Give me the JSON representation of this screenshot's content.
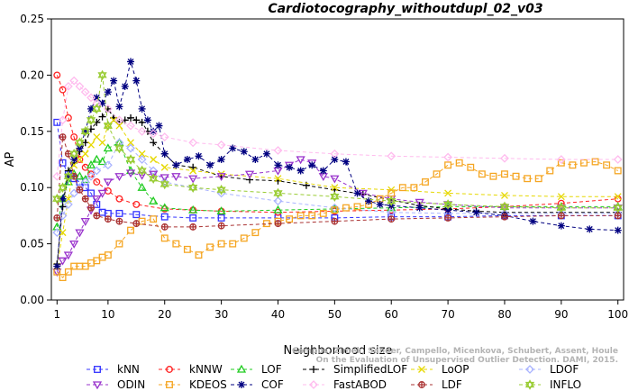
{
  "chart_data": {
    "type": "line",
    "title": "Cardiotocography_withoutdupl_02_v03",
    "xlabel": "Neighborhood size",
    "ylabel": "AP",
    "xlim": [
      0,
      101
    ],
    "ylim": [
      0,
      0.25
    ],
    "x_ticks": [
      1,
      10,
      20,
      30,
      40,
      50,
      60,
      70,
      80,
      90,
      100
    ],
    "x_tick_labels": [
      "1",
      "10",
      "20",
      "30",
      "40",
      "50",
      "60",
      "70",
      "80",
      "90",
      "100"
    ],
    "y_ticks": [
      0,
      0.05,
      0.1,
      0.15,
      0.2,
      0.25
    ],
    "y_tick_labels": [
      "0.00",
      "0.05",
      "0.10",
      "0.15",
      "0.20",
      "0.25"
    ],
    "grid": false,
    "legend_position": "bottom",
    "watermark": "Campos, Zimek, Sander, Campello, Micenkova, Schubert, Assent, Houle\nOn the Evaluation of Unsupervised Outlier Detection. DAMI, 2015.",
    "series": [
      {
        "name": "kNN",
        "color": "#3333ff",
        "marker": "square",
        "x": [
          1,
          2,
          3,
          4,
          5,
          6,
          7,
          8,
          9,
          10,
          12,
          15,
          20,
          25,
          30,
          40,
          50,
          60,
          70,
          80,
          90,
          100
        ],
        "y": [
          0.158,
          0.122,
          0.112,
          0.108,
          0.105,
          0.1,
          0.095,
          0.085,
          0.078,
          0.077,
          0.077,
          0.076,
          0.074,
          0.073,
          0.073,
          0.073,
          0.073,
          0.074,
          0.074,
          0.075,
          0.075,
          0.075
        ]
      },
      {
        "name": "kNNW",
        "color": "#ff2222",
        "marker": "circle",
        "x": [
          1,
          2,
          3,
          4,
          5,
          6,
          7,
          8,
          10,
          12,
          15,
          20,
          25,
          30,
          40,
          50,
          60,
          70,
          80,
          90,
          100
        ],
        "y": [
          0.2,
          0.187,
          0.162,
          0.145,
          0.125,
          0.118,
          0.112,
          0.105,
          0.097,
          0.09,
          0.085,
          0.081,
          0.08,
          0.079,
          0.078,
          0.079,
          0.08,
          0.081,
          0.083,
          0.086,
          0.09
        ]
      },
      {
        "name": "LOF",
        "color": "#22cc22",
        "marker": "triangle",
        "x": [
          1,
          2,
          3,
          4,
          5,
          6,
          7,
          8,
          9,
          10,
          12,
          14,
          16,
          18,
          20,
          25,
          30,
          40,
          50,
          60,
          70,
          80,
          90,
          100
        ],
        "y": [
          0.065,
          0.09,
          0.105,
          0.112,
          0.11,
          0.107,
          0.12,
          0.125,
          0.123,
          0.135,
          0.14,
          0.115,
          0.1,
          0.088,
          0.082,
          0.08,
          0.079,
          0.08,
          0.081,
          0.082,
          0.083,
          0.083,
          0.083,
          0.083
        ]
      },
      {
        "name": "SimplifiedLOF",
        "color": "#000000",
        "marker": "plus",
        "x": [
          1,
          2,
          3,
          4,
          5,
          6,
          7,
          8,
          9,
          10,
          11,
          12,
          13,
          14,
          15,
          16,
          17,
          18,
          20,
          22,
          25,
          30,
          35,
          40,
          45,
          50,
          55,
          60,
          65,
          70,
          75,
          80,
          90,
          100
        ],
        "y": [
          0.032,
          0.083,
          0.115,
          0.122,
          0.132,
          0.14,
          0.152,
          0.158,
          0.163,
          0.17,
          0.162,
          0.158,
          0.16,
          0.162,
          0.16,
          0.158,
          0.15,
          0.14,
          0.13,
          0.12,
          0.118,
          0.11,
          0.107,
          0.106,
          0.102,
          0.098,
          0.094,
          0.089,
          0.084,
          0.081,
          0.079,
          0.078,
          0.078,
          0.078
        ]
      },
      {
        "name": "LoOP",
        "color": "#e6d800",
        "marker": "x",
        "x": [
          1,
          2,
          3,
          4,
          5,
          6,
          7,
          8,
          9,
          10,
          11,
          12,
          14,
          16,
          18,
          20,
          25,
          30,
          40,
          50,
          60,
          70,
          80,
          90,
          100
        ],
        "y": [
          0.03,
          0.06,
          0.09,
          0.12,
          0.125,
          0.13,
          0.138,
          0.145,
          0.14,
          0.155,
          0.16,
          0.155,
          0.14,
          0.13,
          0.125,
          0.118,
          0.115,
          0.112,
          0.108,
          0.1,
          0.098,
          0.095,
          0.093,
          0.092,
          0.092
        ]
      },
      {
        "name": "LDOF",
        "color": "#aab4ff",
        "marker": "diamond",
        "x": [
          1,
          2,
          3,
          4,
          5,
          6,
          7,
          8,
          10,
          12,
          14,
          16,
          18,
          20,
          25,
          30,
          40,
          50,
          60,
          70,
          80,
          90,
          100
        ],
        "y": [
          0.06,
          0.075,
          0.085,
          0.095,
          0.1,
          0.105,
          0.11,
          0.115,
          0.12,
          0.14,
          0.135,
          0.125,
          0.115,
          0.105,
          0.1,
          0.095,
          0.088,
          0.082,
          0.078,
          0.077,
          0.077,
          0.077,
          0.077
        ]
      },
      {
        "name": "ODIN",
        "color": "#9933cc",
        "marker": "triangle-down",
        "x": [
          1,
          2,
          3,
          4,
          5,
          6,
          7,
          8,
          9,
          10,
          12,
          14,
          16,
          18,
          20,
          22,
          25,
          30,
          35,
          40,
          42,
          44,
          46,
          48,
          50,
          55,
          60,
          65,
          70,
          80,
          90,
          100
        ],
        "y": [
          0.025,
          0.035,
          0.04,
          0.05,
          0.06,
          0.07,
          0.08,
          0.09,
          0.095,
          0.105,
          0.11,
          0.113,
          0.111,
          0.112,
          0.109,
          0.11,
          0.108,
          0.11,
          0.112,
          0.115,
          0.12,
          0.125,
          0.122,
          0.11,
          0.108,
          0.095,
          0.09,
          0.087,
          0.085,
          0.082,
          0.082,
          0.082
        ]
      },
      {
        "name": "KDEOS",
        "color": "#f5a623",
        "marker": "square",
        "x": [
          1,
          2,
          3,
          4,
          5,
          6,
          7,
          8,
          9,
          10,
          12,
          14,
          16,
          18,
          20,
          22,
          24,
          26,
          28,
          30,
          32,
          34,
          36,
          38,
          40,
          42,
          44,
          46,
          48,
          50,
          52,
          54,
          56,
          58,
          60,
          62,
          64,
          66,
          68,
          70,
          72,
          74,
          76,
          78,
          80,
          82,
          84,
          86,
          88,
          90,
          92,
          94,
          96,
          98,
          100
        ],
        "y": [
          0.025,
          0.02,
          0.025,
          0.03,
          0.03,
          0.03,
          0.033,
          0.035,
          0.038,
          0.04,
          0.05,
          0.062,
          0.07,
          0.072,
          0.055,
          0.05,
          0.045,
          0.04,
          0.047,
          0.05,
          0.05,
          0.055,
          0.06,
          0.068,
          0.07,
          0.072,
          0.075,
          0.075,
          0.077,
          0.08,
          0.082,
          0.083,
          0.085,
          0.09,
          0.095,
          0.1,
          0.1,
          0.105,
          0.112,
          0.12,
          0.122,
          0.118,
          0.112,
          0.11,
          0.112,
          0.11,
          0.108,
          0.108,
          0.115,
          0.122,
          0.12,
          0.122,
          0.123,
          0.12,
          0.115
        ]
      },
      {
        "name": "COF",
        "color": "#000080",
        "marker": "asterisk",
        "x": [
          1,
          2,
          3,
          4,
          5,
          6,
          7,
          8,
          9,
          10,
          11,
          12,
          13,
          14,
          15,
          16,
          17,
          18,
          19,
          20,
          22,
          24,
          26,
          28,
          30,
          32,
          34,
          36,
          38,
          40,
          42,
          44,
          46,
          48,
          50,
          52,
          54,
          56,
          58,
          60,
          65,
          70,
          75,
          80,
          85,
          90,
          95,
          100
        ],
        "y": [
          0.03,
          0.09,
          0.11,
          0.125,
          0.135,
          0.15,
          0.17,
          0.18,
          0.175,
          0.185,
          0.195,
          0.172,
          0.19,
          0.212,
          0.195,
          0.17,
          0.16,
          0.15,
          0.155,
          0.13,
          0.12,
          0.125,
          0.128,
          0.12,
          0.125,
          0.135,
          0.132,
          0.125,
          0.13,
          0.12,
          0.118,
          0.115,
          0.12,
          0.115,
          0.125,
          0.123,
          0.095,
          0.088,
          0.085,
          0.084,
          0.082,
          0.08,
          0.078,
          0.075,
          0.07,
          0.066,
          0.063,
          0.062
        ]
      },
      {
        "name": "FastABOD",
        "color": "#ffbbee",
        "marker": "diamond",
        "x": [
          1,
          2,
          3,
          4,
          5,
          6,
          7,
          8,
          10,
          12,
          14,
          16,
          18,
          20,
          25,
          30,
          40,
          50,
          60,
          70,
          80,
          90,
          100
        ],
        "y": [
          0.11,
          0.16,
          0.19,
          0.195,
          0.19,
          0.185,
          0.18,
          0.175,
          0.17,
          0.16,
          0.155,
          0.15,
          0.148,
          0.145,
          0.14,
          0.138,
          0.133,
          0.13,
          0.128,
          0.127,
          0.126,
          0.125,
          0.125
        ]
      },
      {
        "name": "LDF",
        "color": "#aa3333",
        "marker": "circle-plus",
        "x": [
          1,
          2,
          3,
          4,
          5,
          6,
          7,
          8,
          10,
          12,
          15,
          20,
          25,
          30,
          40,
          50,
          60,
          70,
          80,
          90,
          100
        ],
        "y": [
          0.073,
          0.145,
          0.13,
          0.11,
          0.098,
          0.09,
          0.082,
          0.075,
          0.072,
          0.07,
          0.068,
          0.065,
          0.065,
          0.066,
          0.068,
          0.07,
          0.072,
          0.073,
          0.074,
          0.075,
          0.075
        ]
      },
      {
        "name": "INFLO",
        "color": "#99cc33",
        "marker": "star6",
        "x": [
          1,
          2,
          3,
          4,
          5,
          6,
          7,
          8,
          9,
          10,
          12,
          14,
          16,
          18,
          20,
          25,
          30,
          40,
          50,
          60,
          70,
          80,
          90,
          100
        ],
        "y": [
          0.09,
          0.1,
          0.11,
          0.13,
          0.14,
          0.15,
          0.16,
          0.17,
          0.2,
          0.155,
          0.135,
          0.125,
          0.115,
          0.108,
          0.103,
          0.1,
          0.098,
          0.095,
          0.092,
          0.088,
          0.085,
          0.083,
          0.082,
          0.082
        ]
      }
    ]
  }
}
